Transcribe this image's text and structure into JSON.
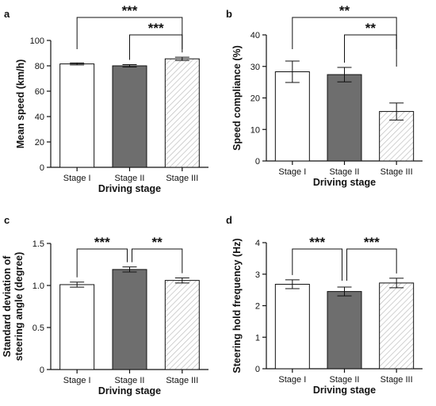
{
  "chart_data": [
    {
      "panel": "a",
      "type": "bar",
      "categories": [
        "Stage I",
        "Stage II",
        "Stage III"
      ],
      "values": [
        81.5,
        80.0,
        85.5
      ],
      "errors": [
        0.8,
        0.9,
        1.3
      ],
      "xlabel": "Driving stage",
      "ylabel": "Mean speed (km/h)",
      "ylim": [
        0,
        100
      ],
      "yticks": [
        "0",
        "20",
        "40",
        "60",
        "80",
        "100"
      ],
      "significance": [
        {
          "from": 0,
          "to": 2,
          "label": "***"
        },
        {
          "from": 1,
          "to": 2,
          "label": "***"
        }
      ]
    },
    {
      "panel": "b",
      "type": "bar",
      "categories": [
        "Stage I",
        "Stage II",
        "Stage III"
      ],
      "values": [
        28.3,
        27.4,
        15.7
      ],
      "errors": [
        3.4,
        2.3,
        2.7
      ],
      "xlabel": "Driving stage",
      "ylabel": "Speed compliance  (%)",
      "ylim": [
        0,
        40
      ],
      "yticks": [
        "0",
        "10",
        "20",
        "30",
        "40"
      ],
      "significance": [
        {
          "from": 0,
          "to": 2,
          "label": "**"
        },
        {
          "from": 1,
          "to": 2,
          "label": "**"
        }
      ]
    },
    {
      "panel": "c",
      "type": "bar",
      "categories": [
        "Stage I",
        "Stage II",
        "Stage III"
      ],
      "values": [
        1.01,
        1.19,
        1.06
      ],
      "errors": [
        0.03,
        0.03,
        0.03
      ],
      "xlabel": "Driving stage",
      "ylabel": "Standard deviation of steering angle (degree)",
      "ylabel_lines": [
        "Standard deviation of",
        "steering angle (degree)"
      ],
      "ylim": [
        0,
        1.5
      ],
      "yticks": [
        "0",
        "0.5",
        "1.0",
        "1.5"
      ],
      "significance": [
        {
          "from": 0,
          "to": 1,
          "label": "***"
        },
        {
          "from": 1,
          "to": 2,
          "label": "**"
        }
      ]
    },
    {
      "panel": "d",
      "type": "bar",
      "categories": [
        "Stage I",
        "Stage II",
        "Stage III"
      ],
      "values": [
        2.68,
        2.45,
        2.72
      ],
      "errors": [
        0.14,
        0.14,
        0.15
      ],
      "xlabel": "Driving stage",
      "ylabel": "Steering hold frequency (Hz)",
      "ylim": [
        0,
        4
      ],
      "yticks": [
        "0",
        "1",
        "2",
        "3",
        "4"
      ],
      "significance": [
        {
          "from": 0,
          "to": 1,
          "label": "***"
        },
        {
          "from": 1,
          "to": 2,
          "label": "***"
        }
      ]
    }
  ],
  "colors": {
    "stage1_fill": "#ffffff",
    "stage2_fill": "#6e6e6e",
    "stage3_hatch": "#bdbdbd",
    "stroke": "#111111"
  }
}
